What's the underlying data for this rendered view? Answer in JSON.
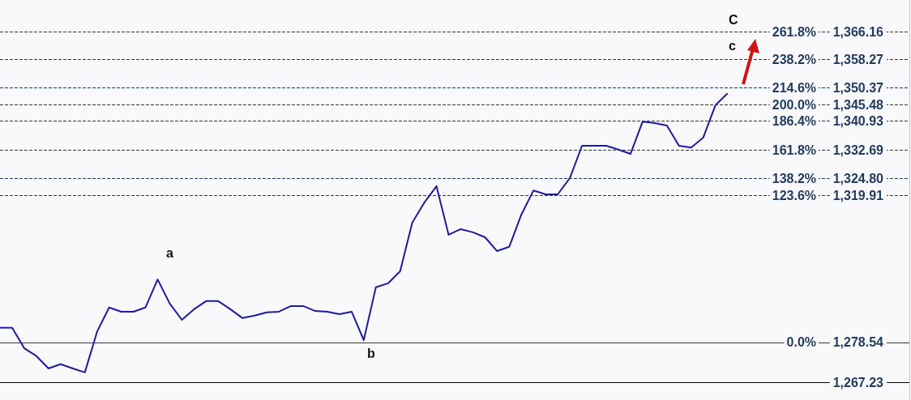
{
  "chart_data": {
    "type": "line",
    "categories": [
      null,
      null,
      null,
      null,
      null,
      null,
      null,
      null,
      null,
      null,
      null,
      null,
      null,
      null,
      null,
      null,
      null,
      null,
      null,
      null,
      null,
      null,
      null,
      null,
      null,
      null,
      null,
      null,
      null,
      null,
      null,
      null,
      null,
      null,
      null,
      null,
      null,
      null,
      null,
      null,
      null,
      null,
      null,
      null,
      null,
      null,
      null,
      null,
      null,
      null,
      null,
      null,
      null,
      null,
      null,
      null,
      null,
      null,
      null,
      null,
      null,
      null,
      null,
      null,
      null,
      null,
      null,
      null,
      null,
      null,
      null,
      null,
      null,
      null,
      null,
      null
    ],
    "series": [
      {
        "color": "#1c1ca0",
        "values": [
          1282.7,
          1282.7,
          1276.9,
          1274.7,
          1271.2,
          1272.4,
          1271.2,
          1270.1,
          1281.5,
          1288.4,
          1287.2,
          1287.2,
          1288.4,
          1296.3,
          1289.5,
          1284.9,
          1287.9,
          1290.2,
          1290.2,
          1287.9,
          1285.4,
          1286.1,
          1287.0,
          1287.2,
          1288.8,
          1288.8,
          1287.4,
          1287.2,
          1286.5,
          1287.2,
          1279.2,
          1294.1,
          1295.2,
          1298.6,
          1312.3,
          1318.0,
          1322.6,
          1308.9,
          1310.5,
          1309.6,
          1308.2,
          1304.3,
          1305.5,
          1314.6,
          1321.4,
          1320.3,
          1320.3,
          1324.9,
          1334.0,
          1334.0,
          1334.0,
          1332.9,
          1331.7,
          1340.8,
          1340.4,
          1339.7,
          1334.0,
          1333.5,
          1336.3,
          1345.4,
          1348.8,
          null,
          null,
          null,
          null,
          null,
          null,
          null,
          null,
          null,
          null,
          null,
          null,
          null,
          null,
          null
        ]
      }
    ],
    "ylim": [
      1262.3,
      1375.1
    ],
    "yticks": [
      {
        "value": 1267.23,
        "label": "1,267.23"
      },
      {
        "value": 1278.54,
        "label": "1,278.54"
      },
      {
        "value": 1319.91,
        "label": "1,319.91"
      },
      {
        "value": 1324.8,
        "label": "1,324.80"
      },
      {
        "value": 1332.69,
        "label": "1,332.69"
      },
      {
        "value": 1340.93,
        "label": "1,340.93"
      },
      {
        "value": 1345.48,
        "label": "1,345.48"
      },
      {
        "value": 1350.37,
        "label": "1,350.37"
      },
      {
        "value": 1358.27,
        "label": "1,358.27"
      },
      {
        "value": 1366.16,
        "label": "1,366.16"
      }
    ],
    "tick_labels": "y",
    "marker": "none",
    "ref_lines": [
      {
        "axis": "y",
        "value": 1366.16,
        "color": "#1f3a5f",
        "line_style": "dashed"
      },
      {
        "axis": "y",
        "value": 1358.27,
        "color": "#1f3a5f",
        "line_style": "dashed"
      },
      {
        "axis": "y",
        "value": 1350.37,
        "color": "#1f3a5f",
        "line_style": "dashed"
      },
      {
        "axis": "y",
        "value": 1345.48,
        "color": "#1f3a5f",
        "line_style": "dashed"
      },
      {
        "axis": "y",
        "value": 1340.93,
        "color": "#1f3a5f",
        "line_style": "dashed"
      },
      {
        "axis": "y",
        "value": 1332.69,
        "color": "#1f3a5f",
        "line_style": "dashed"
      },
      {
        "axis": "y",
        "value": 1324.8,
        "color": "#1f3a5f",
        "line_style": "dashed"
      },
      {
        "axis": "y",
        "value": 1319.91,
        "color": "#1f3a5f",
        "line_style": "dashed"
      },
      {
        "axis": "y",
        "value": 1278.54,
        "color": "#1f3a5f",
        "line_style": "solid"
      },
      {
        "axis": "y",
        "value": 1267.23,
        "color": "#000000",
        "line_style": "solid"
      }
    ],
    "annotations": [
      "a",
      "b",
      "c",
      "C",
      "261.8%",
      "238.2%",
      "214.6%",
      "200.0%",
      "186.4%",
      "161.8%",
      "138.2%",
      "123.6%",
      "0.0%"
    ]
  }
}
